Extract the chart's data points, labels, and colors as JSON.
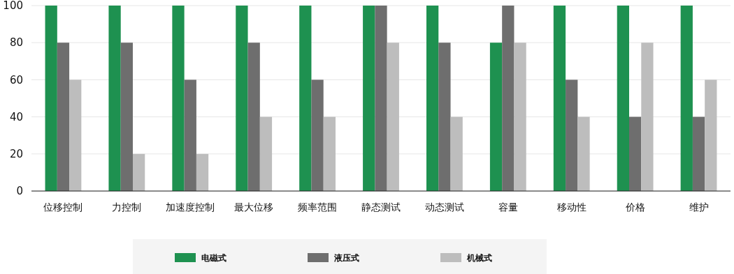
{
  "chart_data": {
    "type": "bar",
    "categories": [
      "位移控制",
      "力控制",
      "加速度控制",
      "最大位移",
      "频率范围",
      "静态测试",
      "动态测试",
      "容量",
      "移动性",
      "价格",
      "维护"
    ],
    "series": [
      {
        "name": "电磁式",
        "color": "#1e9150",
        "values": [
          100,
          100,
          100,
          100,
          100,
          100,
          100,
          80,
          100,
          100,
          100
        ]
      },
      {
        "name": "液压式",
        "color": "#6e6e6e",
        "values": [
          80,
          80,
          60,
          80,
          60,
          100,
          80,
          100,
          60,
          40,
          40
        ]
      },
      {
        "name": "机械式",
        "color": "#bdbdbd",
        "values": [
          60,
          20,
          20,
          40,
          40,
          80,
          40,
          80,
          40,
          80,
          60
        ]
      }
    ],
    "ylim": [
      0,
      100
    ],
    "yticks": [
      0,
      20,
      40,
      60,
      80,
      100
    ],
    "grid": "y",
    "legend": "bottom"
  }
}
